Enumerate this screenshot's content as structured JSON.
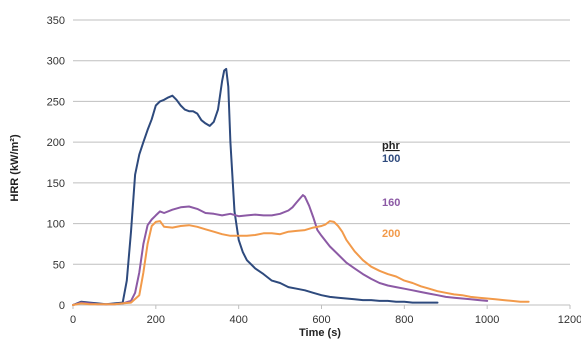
{
  "chart_data": {
    "type": "line",
    "title": "",
    "xlabel": "Time (s)",
    "ylabel": "HRR (kW/m²)",
    "xlim": [
      0,
      1200
    ],
    "ylim": [
      0,
      350
    ],
    "x_ticks": [
      "0",
      "200",
      "400",
      "600",
      "800",
      "1000",
      "1200"
    ],
    "y_ticks": [
      "0",
      "50",
      "100",
      "150",
      "200",
      "250",
      "300",
      "350"
    ],
    "grid": "horizontal",
    "legend_title": "phr",
    "legend_placement": "right",
    "colors": {
      "100": "#2e4a7d",
      "160": "#8c5aa5",
      "200": "#f29a4a",
      "grid": "#bfbfbf"
    },
    "series": [
      {
        "name": "100",
        "x": [
          0,
          20,
          40,
          60,
          80,
          100,
          120,
          130,
          140,
          150,
          160,
          170,
          180,
          190,
          200,
          210,
          220,
          230,
          240,
          250,
          260,
          270,
          280,
          290,
          300,
          310,
          320,
          330,
          340,
          350,
          360,
          365,
          370,
          375,
          380,
          390,
          400,
          410,
          420,
          440,
          460,
          480,
          500,
          520,
          540,
          560,
          580,
          600,
          620,
          640,
          660,
          680,
          700,
          720,
          740,
          760,
          780,
          800,
          820,
          840,
          860,
          880
        ],
        "y": [
          0,
          4,
          3,
          2,
          1,
          2,
          3,
          30,
          90,
          160,
          185,
          200,
          215,
          228,
          245,
          250,
          252,
          255,
          257,
          252,
          245,
          240,
          238,
          238,
          235,
          227,
          223,
          220,
          225,
          240,
          275,
          288,
          290,
          268,
          200,
          115,
          80,
          65,
          55,
          45,
          38,
          30,
          27,
          22,
          20,
          18,
          15,
          12,
          10,
          9,
          8,
          7,
          6,
          6,
          5,
          5,
          4,
          4,
          3,
          3,
          3,
          3
        ]
      },
      {
        "name": "160",
        "x": [
          0,
          20,
          40,
          60,
          80,
          100,
          120,
          140,
          150,
          160,
          170,
          180,
          190,
          200,
          210,
          220,
          240,
          260,
          280,
          300,
          320,
          340,
          360,
          380,
          400,
          420,
          440,
          460,
          480,
          500,
          520,
          530,
          540,
          550,
          555,
          560,
          570,
          580,
          590,
          600,
          620,
          640,
          660,
          680,
          700,
          720,
          740,
          760,
          780,
          800,
          820,
          840,
          860,
          880,
          900,
          920,
          940,
          960,
          980,
          1000
        ],
        "y": [
          0,
          3,
          2,
          1,
          1,
          1,
          2,
          5,
          15,
          40,
          75,
          98,
          105,
          110,
          115,
          113,
          117,
          120,
          121,
          118,
          113,
          112,
          110,
          112,
          109,
          110,
          111,
          110,
          110,
          112,
          116,
          120,
          126,
          132,
          135,
          133,
          122,
          108,
          92,
          85,
          72,
          62,
          52,
          45,
          38,
          32,
          27,
          24,
          22,
          20,
          18,
          16,
          14,
          12,
          10,
          9,
          8,
          7,
          6,
          5
        ]
      },
      {
        "name": "200",
        "x": [
          0,
          20,
          40,
          60,
          80,
          100,
          120,
          140,
          160,
          170,
          180,
          190,
          200,
          210,
          220,
          240,
          260,
          280,
          300,
          320,
          340,
          360,
          380,
          400,
          420,
          440,
          460,
          480,
          500,
          520,
          540,
          560,
          580,
          600,
          610,
          620,
          630,
          640,
          650,
          660,
          680,
          700,
          720,
          740,
          760,
          780,
          800,
          820,
          840,
          860,
          880,
          900,
          920,
          940,
          960,
          980,
          1000,
          1020,
          1040,
          1060,
          1080,
          1100
        ],
        "y": [
          0,
          2,
          1,
          1,
          1,
          1,
          2,
          3,
          12,
          40,
          75,
          97,
          102,
          103,
          96,
          95,
          97,
          98,
          96,
          93,
          90,
          87,
          85,
          85,
          85,
          86,
          88,
          88,
          87,
          90,
          91,
          92,
          95,
          97,
          99,
          103,
          102,
          97,
          90,
          80,
          66,
          55,
          47,
          42,
          38,
          35,
          30,
          27,
          23,
          20,
          17,
          15,
          13,
          12,
          10,
          9,
          8,
          7,
          6,
          5,
          4,
          4
        ]
      }
    ]
  }
}
